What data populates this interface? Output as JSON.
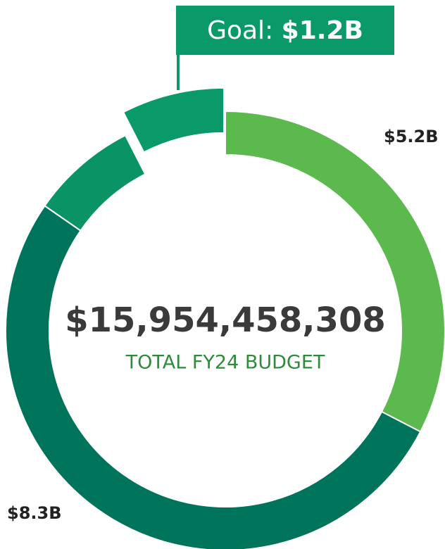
{
  "chart_data": {
    "type": "donut",
    "center_value": "$15,954,458,308",
    "center_label": "TOTAL FY24 BUDGET",
    "goal_label": "Goal:",
    "categories": [
      null,
      null,
      null,
      null
    ],
    "values": [
      5.2,
      8.3,
      1.25,
      1.2
    ],
    "value_labels": [
      "$5.2B",
      "$8.3B",
      null,
      "$1.2B"
    ],
    "colors": [
      "#5cb94e",
      "#00745a",
      "#0a9466",
      "#0a9a6a"
    ],
    "explode_index": 3
  }
}
